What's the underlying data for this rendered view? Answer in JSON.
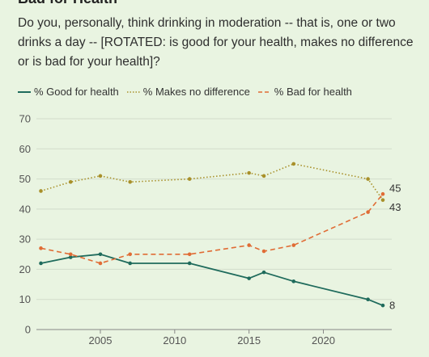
{
  "title_partial": "Bad for Health",
  "question": "Do you, personally, think drinking in moderation -- that is, one or two drinks a day -- [ROTATED: is good for your health, makes no difference or is bad for your health]?",
  "chart_data": {
    "type": "line",
    "title": "Bad for Health",
    "xlabel": "",
    "ylabel": "",
    "xlim": [
      2000.7,
      2024.6
    ],
    "ylim": [
      0,
      70
    ],
    "x_ticks": [
      2005,
      2010,
      2015,
      2020
    ],
    "y_ticks": [
      0,
      10,
      20,
      30,
      40,
      50,
      60,
      70
    ],
    "grid": "horizontal",
    "legend_position": "top-left",
    "series": [
      {
        "name": "% Good for health",
        "color": "#1f6b5c",
        "style": "solid",
        "x": [
          2001,
          2003,
          2005,
          2007,
          2011,
          2015,
          2016,
          2018,
          2023,
          2024
        ],
        "y": [
          22,
          24,
          25,
          22,
          22,
          17,
          19,
          16,
          10,
          8
        ],
        "end_label": "8"
      },
      {
        "name": "% Makes no difference",
        "color": "#a8902a",
        "style": "dotted",
        "x": [
          2001,
          2003,
          2005,
          2007,
          2011,
          2015,
          2016,
          2018,
          2023,
          2024
        ],
        "y": [
          46,
          49,
          51,
          49,
          50,
          52,
          51,
          55,
          50,
          43
        ],
        "end_label": "43"
      },
      {
        "name": "% Bad for health",
        "color": "#e06c35",
        "style": "dashed",
        "x": [
          2001,
          2003,
          2005,
          2007,
          2011,
          2015,
          2016,
          2018,
          2023,
          2024
        ],
        "y": [
          27,
          25,
          22,
          25,
          25,
          28,
          26,
          28,
          39,
          45
        ],
        "end_label": "45"
      }
    ]
  }
}
